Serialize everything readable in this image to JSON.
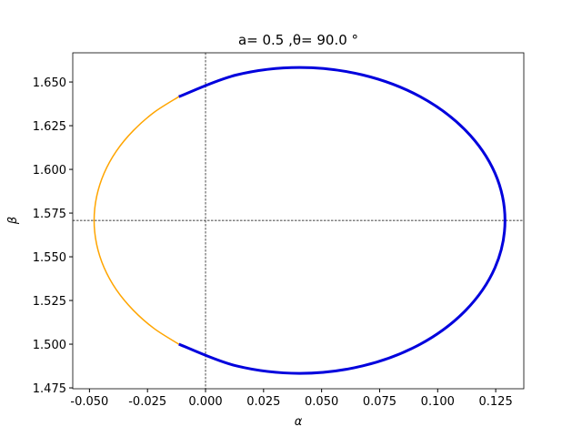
{
  "chart_data": {
    "type": "line",
    "title": "a= 0.5 ,θ= 90.0 °",
    "xlabel": "α",
    "ylabel": "β",
    "xlim": [
      -0.0572,
      0.1371
    ],
    "ylim": [
      1.4745,
      1.6667
    ],
    "xticks": [
      {
        "value": -0.05,
        "label": "-0.050"
      },
      -0.025,
      {
        "value": 0,
        "label": "0.000"
      },
      0.025,
      {
        "value": 0.05,
        "label": "0.050"
      },
      0.075,
      {
        "value": 0.1,
        "label": "0.100"
      },
      0.125
    ],
    "yticks": [
      1.475,
      {
        "value": 1.5,
        "label": "1.500"
      },
      1.525,
      {
        "value": 1.55,
        "label": "1.550"
      },
      1.575,
      {
        "value": 1.6,
        "label": "1.600"
      },
      1.625,
      {
        "value": 1.65,
        "label": "1.650"
      }
    ],
    "reference_lines": {
      "x": 0,
      "y": 1.5708
    },
    "series": [
      {
        "color": "#ffa500",
        "width": 1.5,
        "x": [
          -0.0115,
          -0.0221,
          -0.0311,
          -0.0384,
          -0.0437,
          -0.0469,
          -0.048,
          -0.0469,
          -0.0437,
          -0.0384,
          -0.0311,
          -0.0221,
          -0.0115
        ],
        "values": [
          1.6416,
          1.6327,
          1.6222,
          1.6105,
          1.5978,
          1.5845,
          1.5708,
          1.5571,
          1.5438,
          1.5311,
          1.5194,
          1.5089,
          1.5
        ]
      },
      {
        "color": "#0000dd",
        "width": 3,
        "x": [
          -0.0115,
          0.0132,
          0.0405,
          0.0678,
          0.0925,
          0.1121,
          0.1247,
          0.129,
          0.1247,
          0.1121,
          0.0925,
          0.0678,
          0.0405,
          0.0132,
          -0.0115
        ],
        "values": [
          1.5,
          1.4876,
          1.4833,
          1.4876,
          1.5,
          1.5194,
          1.5438,
          1.5708,
          1.5978,
          1.6222,
          1.6416,
          1.654,
          1.6583,
          1.654,
          1.6416
        ]
      }
    ]
  }
}
